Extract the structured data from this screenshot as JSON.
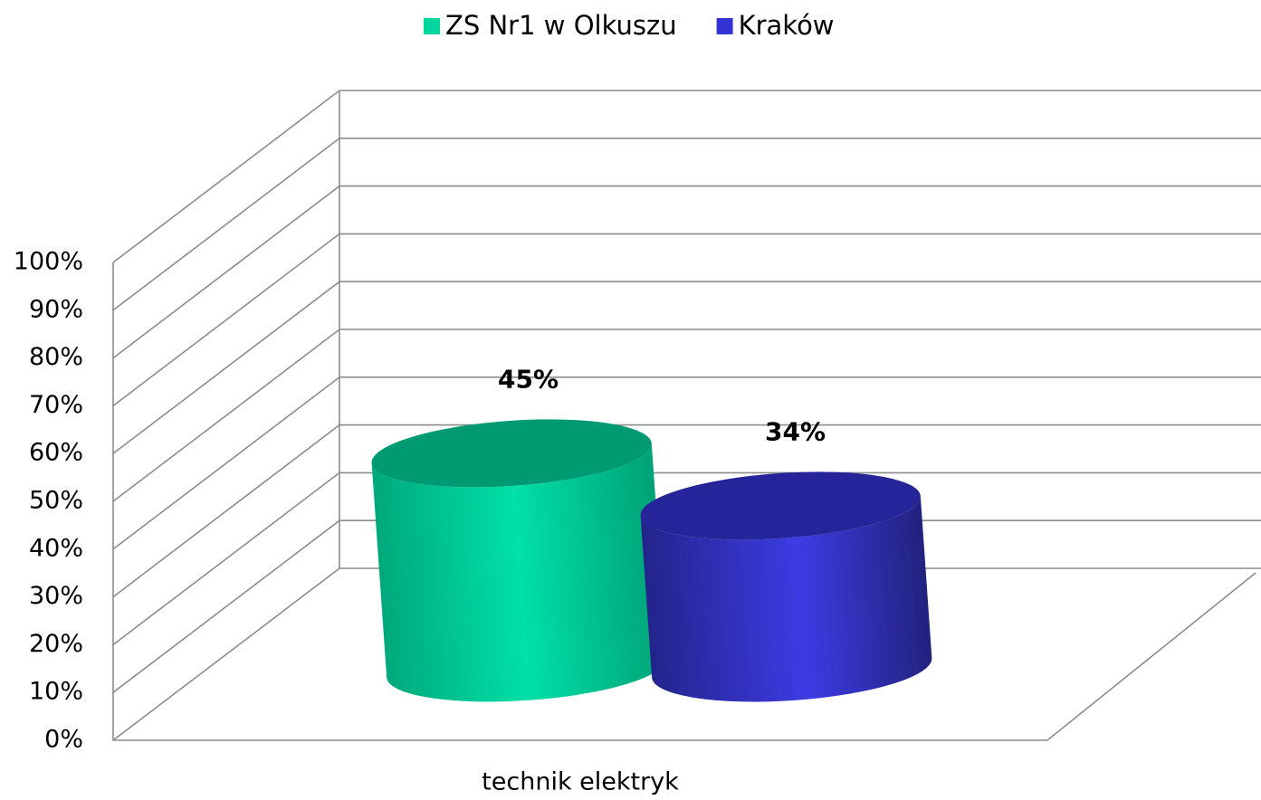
{
  "chart_data": {
    "type": "bar3d",
    "categories": [
      "technik elektryk"
    ],
    "series": [
      {
        "name": "ZS Nr1 w Olkuszu",
        "color": "#00d69e",
        "values": [
          45
        ],
        "value_labels": [
          "45%"
        ]
      },
      {
        "name": "Kraków",
        "color": "#3434d4",
        "values": [
          34
        ],
        "value_labels": [
          "34%"
        ]
      }
    ],
    "ylim": [
      0,
      100
    ],
    "yticks": [
      {
        "value": 0,
        "label": "0%"
      },
      {
        "value": 10,
        "label": "10%"
      },
      {
        "value": 20,
        "label": "20%"
      },
      {
        "value": 30,
        "label": "30%"
      },
      {
        "value": 40,
        "label": "40%"
      },
      {
        "value": 50,
        "label": "50%"
      },
      {
        "value": 60,
        "label": "60%"
      },
      {
        "value": 70,
        "label": "70%"
      },
      {
        "value": 80,
        "label": "80%"
      },
      {
        "value": 90,
        "label": "90%"
      },
      {
        "value": 100,
        "label": "100%"
      }
    ],
    "grid": true,
    "legend": "top"
  }
}
